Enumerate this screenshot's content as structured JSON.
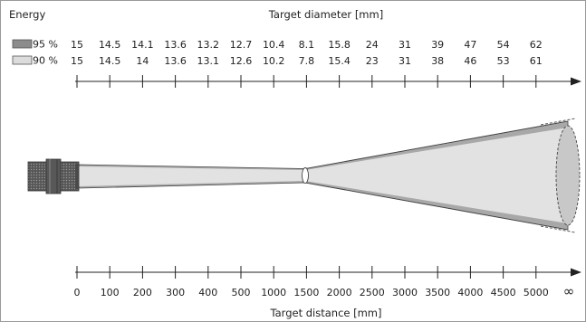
{
  "energy_label": "Energy",
  "diameter_title": "Target diameter [mm]",
  "distance_title": "Target distance [mm]",
  "rows": [
    {
      "label": "95 %",
      "swatch_color": "#8c8c8c",
      "values": [
        "15",
        "14.5",
        "14.1",
        "13.6",
        "13.2",
        "12.7",
        "10.4",
        "8.1",
        "15.8",
        "24",
        "31",
        "39",
        "47",
        "54",
        "62"
      ]
    },
    {
      "label": "90 %",
      "swatch_color": "#dcdcdc",
      "values": [
        "15",
        "14.5",
        "14",
        "13.6",
        "13.1",
        "12.6",
        "10.2",
        "7.8",
        "15.4",
        "23",
        "31",
        "38",
        "46",
        "53",
        "61"
      ]
    }
  ],
  "distances": [
    "0",
    "100",
    "200",
    "300",
    "400",
    "500",
    "1000",
    "1500",
    "2000",
    "2500",
    "3000",
    "3500",
    "4000",
    "4500",
    "5000"
  ],
  "infinity_label": "∞",
  "colors": {
    "beam_outer": "#a8a8a8",
    "beam_inner": "#e2e2e2",
    "spot_fill": "#c8c8c8",
    "axis": "#222222",
    "sensor_body": "#6a6a6a"
  },
  "icons": {
    "sensor": "ir-sensor-icon"
  }
}
